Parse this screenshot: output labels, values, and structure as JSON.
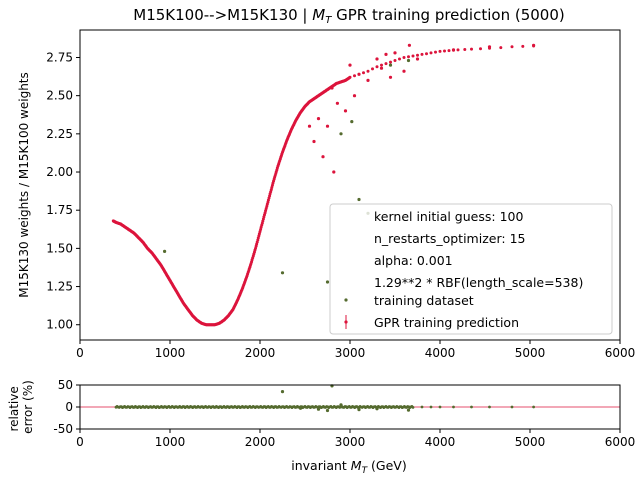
{
  "colors": {
    "prediction": "#dc143c",
    "training": "#556b2f",
    "axis": "#000000",
    "legend_border": "#cccccc",
    "zero_line": "#dc143c"
  },
  "chart_data": [
    {
      "type": "scatter",
      "title_main": "M15K100-->M15K130 | ",
      "title_var": "M",
      "title_sub": "T",
      "title_rest": " GPR training prediction (5000)",
      "ylabel": "M15K130 weights / M15K100 weights",
      "xlim": [
        0,
        6000
      ],
      "ylim": [
        0.9,
        2.93
      ],
      "xticks": [
        "0",
        "1000",
        "2000",
        "3000",
        "4000",
        "5000",
        "6000"
      ],
      "yticks": [
        "1.00",
        "1.25",
        "1.50",
        "1.75",
        "2.00",
        "2.25",
        "2.50",
        "2.75"
      ],
      "grid": false,
      "legend_position": "lower-right",
      "legend": [
        {
          "label": "kernel initial guess: 100",
          "marker": "none"
        },
        {
          "label": "n_restarts_optimizer: 15",
          "marker": "none"
        },
        {
          "label": "alpha: 0.001",
          "marker": "none"
        },
        {
          "label": "1.29**2 * RBF(length_scale=538)",
          "marker": "none"
        },
        {
          "label": "training dataset",
          "marker": "dot"
        },
        {
          "label": "GPR training prediction",
          "marker": "errorbar"
        }
      ],
      "series": [
        {
          "name": "GPR training prediction",
          "x": [
            370,
            400,
            450,
            500,
            550,
            600,
            650,
            700,
            750,
            800,
            850,
            900,
            950,
            1000,
            1050,
            1100,
            1150,
            1200,
            1250,
            1300,
            1350,
            1400,
            1450,
            1500,
            1550,
            1600,
            1650,
            1700,
            1750,
            1800,
            1850,
            1900,
            1950,
            2000,
            2050,
            2100,
            2150,
            2200,
            2250,
            2300,
            2350,
            2400,
            2450,
            2500,
            2550,
            2600,
            2650,
            2700,
            2750,
            2800,
            2850,
            2900,
            2950,
            3000,
            3100,
            3200,
            3300,
            3400,
            3500,
            3600,
            3700,
            3800,
            3900,
            4000,
            4100,
            4200,
            4350,
            4550,
            4800,
            5040
          ],
          "y": [
            1.68,
            1.67,
            1.66,
            1.64,
            1.62,
            1.6,
            1.57,
            1.54,
            1.5,
            1.47,
            1.43,
            1.39,
            1.34,
            1.29,
            1.24,
            1.19,
            1.14,
            1.1,
            1.06,
            1.03,
            1.01,
            1.0,
            1.0,
            1.0,
            1.01,
            1.03,
            1.06,
            1.1,
            1.16,
            1.23,
            1.31,
            1.4,
            1.5,
            1.61,
            1.72,
            1.83,
            1.94,
            2.04,
            2.13,
            2.21,
            2.28,
            2.34,
            2.39,
            2.43,
            2.46,
            2.48,
            2.5,
            2.52,
            2.54,
            2.56,
            2.58,
            2.59,
            2.6,
            2.62,
            2.64,
            2.66,
            2.69,
            2.71,
            2.73,
            2.75,
            2.76,
            2.77,
            2.78,
            2.79,
            2.795,
            2.8,
            2.805,
            2.81,
            2.82,
            2.825
          ]
        },
        {
          "name": "training dataset",
          "x": [
            940,
            2250,
            2750,
            3200,
            3100,
            3450,
            3650,
            2900,
            3020
          ],
          "y": [
            1.48,
            1.34,
            1.28,
            1.73,
            1.82,
            2.7,
            2.73,
            2.25,
            2.33
          ]
        }
      ],
      "outliers_prediction": {
        "x": [
          2600,
          2700,
          2750,
          2820,
          2860,
          2950,
          3100,
          3300,
          3350,
          3500,
          3600,
          3660,
          3750,
          3000,
          3200,
          3400,
          4150,
          4550,
          5040,
          2550,
          2650,
          2800,
          3050,
          3450
        ],
        "y": [
          2.2,
          2.1,
          2.3,
          2.0,
          2.45,
          2.4,
          2.64,
          2.74,
          2.68,
          2.78,
          2.66,
          2.83,
          2.74,
          2.7,
          2.6,
          2.77,
          2.8,
          2.82,
          2.83,
          2.3,
          2.35,
          2.55,
          2.5,
          2.62
        ]
      }
    },
    {
      "type": "scatter",
      "ylabel_line1": "relative",
      "ylabel_line2": "error (%)",
      "xlabel_main": "invariant ",
      "xlabel_var": "M",
      "xlabel_sub": "T",
      "xlabel_rest": " (GeV)",
      "xlim": [
        0,
        6000
      ],
      "ylim": [
        -50,
        50
      ],
      "xticks": [
        "0",
        "1000",
        "2000",
        "3000",
        "4000",
        "5000",
        "6000"
      ],
      "yticks": [
        "50",
        "0",
        "-50"
      ],
      "series": [
        {
          "name": "training dataset",
          "x": [
            2250,
            2800,
            2750,
            2650,
            3100,
            3650,
            2900,
            3300,
            2450
          ],
          "y": [
            35,
            48,
            -8,
            -5,
            -6,
            -7,
            5,
            -4,
            -3
          ]
        }
      ]
    }
  ]
}
